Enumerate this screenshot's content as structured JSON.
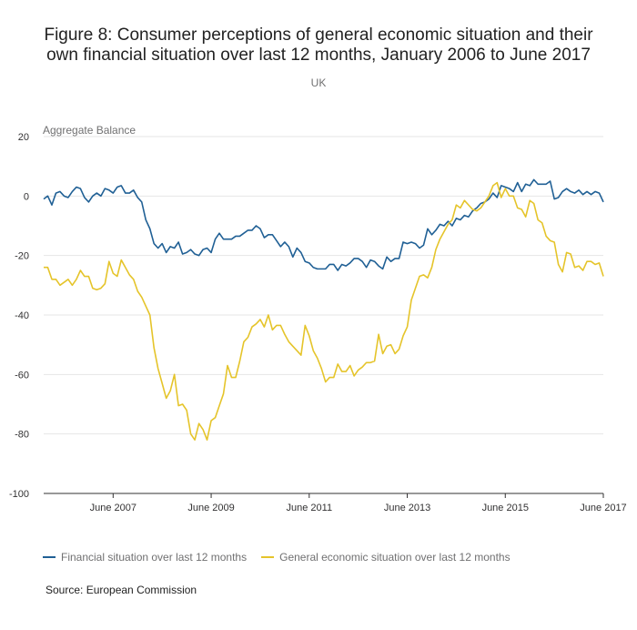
{
  "title_line1": "Figure 8: Consumer perceptions of general economic situation and their",
  "title_line2": "own financial situation over last 12 months, January 2006 to June 2017",
  "subtitle": "UK",
  "source": "Source: European Commission",
  "chart_data": {
    "type": "line",
    "ylabel": "Aggregate Balance",
    "ylim": [
      -100,
      20
    ],
    "yticks": [
      20,
      0,
      -20,
      -40,
      -60,
      -80,
      -100
    ],
    "xlim": [
      2006.0,
      2017.4167
    ],
    "xticks": [
      {
        "label": "June 2007",
        "x": 2007.4167
      },
      {
        "label": "June 2009",
        "x": 2009.4167
      },
      {
        "label": "June 2011",
        "x": 2011.4167
      },
      {
        "label": "June 2013",
        "x": 2013.4167
      },
      {
        "label": "June 2015",
        "x": 2015.4167
      },
      {
        "label": "June 2017",
        "x": 2017.4167
      }
    ],
    "series": [
      {
        "name": "Financial situation over last 12 months",
        "color": "#206095",
        "x": [
          2006.0,
          2006.083,
          2006.167,
          2006.25,
          2006.333,
          2006.417,
          2006.5,
          2006.583,
          2006.667,
          2006.75,
          2006.833,
          2006.917,
          2007.0,
          2007.083,
          2007.167,
          2007.25,
          2007.333,
          2007.417,
          2007.5,
          2007.583,
          2007.667,
          2007.75,
          2007.833,
          2007.917,
          2008.0,
          2008.083,
          2008.167,
          2008.25,
          2008.333,
          2008.417,
          2008.5,
          2008.583,
          2008.667,
          2008.75,
          2008.833,
          2008.917,
          2009.0,
          2009.083,
          2009.167,
          2009.25,
          2009.333,
          2009.417,
          2009.5,
          2009.583,
          2009.667,
          2009.75,
          2009.833,
          2009.917,
          2010.0,
          2010.083,
          2010.167,
          2010.25,
          2010.333,
          2010.417,
          2010.5,
          2010.583,
          2010.667,
          2010.75,
          2010.833,
          2010.917,
          2011.0,
          2011.083,
          2011.167,
          2011.25,
          2011.333,
          2011.417,
          2011.5,
          2011.583,
          2011.667,
          2011.75,
          2011.833,
          2011.917,
          2012.0,
          2012.083,
          2012.167,
          2012.25,
          2012.333,
          2012.417,
          2012.5,
          2012.583,
          2012.667,
          2012.75,
          2012.833,
          2012.917,
          2013.0,
          2013.083,
          2013.167,
          2013.25,
          2013.333,
          2013.417,
          2013.5,
          2013.583,
          2013.667,
          2013.75,
          2013.833,
          2013.917,
          2014.0,
          2014.083,
          2014.167,
          2014.25,
          2014.333,
          2014.417,
          2014.5,
          2014.583,
          2014.667,
          2014.75,
          2014.833,
          2014.917,
          2015.0,
          2015.083,
          2015.167,
          2015.25,
          2015.333,
          2015.417,
          2015.5,
          2015.583,
          2015.667,
          2015.75,
          2015.833,
          2015.917,
          2016.0,
          2016.083,
          2016.167,
          2016.25,
          2016.333,
          2016.417,
          2016.5,
          2016.583,
          2016.667,
          2016.75,
          2016.833,
          2016.917,
          2017.0,
          2017.083,
          2017.167,
          2017.25,
          2017.333,
          2017.417
        ],
        "values": [
          -1,
          0,
          -3,
          1,
          1.5,
          0,
          -0.5,
          1.5,
          3,
          2.5,
          -0.5,
          -2,
          0,
          1,
          0,
          2.5,
          2,
          1,
          3,
          3.5,
          1,
          1,
          2,
          -0.5,
          -2,
          -8,
          -11,
          -16,
          -17.5,
          -16,
          -19,
          -17,
          -17.5,
          -15.5,
          -19.5,
          -19,
          -18,
          -19.5,
          -20,
          -18,
          -17.5,
          -19,
          -14.5,
          -12.5,
          -14.5,
          -14.5,
          -14.5,
          -13.5,
          -13.5,
          -12.5,
          -11.5,
          -11.5,
          -10,
          -11,
          -14,
          -13,
          -13,
          -15,
          -17,
          -15.5,
          -17,
          -20.5,
          -17.5,
          -19,
          -22,
          -22.5,
          -24,
          -24.5,
          -24.5,
          -24.5,
          -23,
          -23,
          -25,
          -23,
          -23.5,
          -22.5,
          -21,
          -21,
          -22,
          -24,
          -21.5,
          -22,
          -23.5,
          -24.5,
          -20.5,
          -22,
          -21,
          -21,
          -15.5,
          -16,
          -15.5,
          -16,
          -17.5,
          -16.5,
          -11,
          -13,
          -11.5,
          -9.5,
          -10,
          -8.5,
          -10,
          -7.5,
          -8,
          -6.5,
          -7,
          -5,
          -4,
          -2.5,
          -2,
          -1,
          1,
          -0.5,
          3.5,
          3,
          2.5,
          1.5,
          4.5,
          1.5,
          4,
          3.5,
          5.5,
          4,
          4,
          4,
          5,
          -1,
          -0.5,
          1.5,
          2.5,
          1.5,
          1,
          2,
          0.5,
          1.5,
          0.5,
          1.5,
          1,
          -2
        ]
      },
      {
        "name": "General economic situation over last 12 months",
        "color": "#e5c42a",
        "x": [
          2006.0,
          2006.083,
          2006.167,
          2006.25,
          2006.333,
          2006.417,
          2006.5,
          2006.583,
          2006.667,
          2006.75,
          2006.833,
          2006.917,
          2007.0,
          2007.083,
          2007.167,
          2007.25,
          2007.333,
          2007.417,
          2007.5,
          2007.583,
          2007.667,
          2007.75,
          2007.833,
          2007.917,
          2008.0,
          2008.083,
          2008.167,
          2008.25,
          2008.333,
          2008.417,
          2008.5,
          2008.583,
          2008.667,
          2008.75,
          2008.833,
          2008.917,
          2009.0,
          2009.083,
          2009.167,
          2009.25,
          2009.333,
          2009.417,
          2009.5,
          2009.583,
          2009.667,
          2009.75,
          2009.833,
          2009.917,
          2010.0,
          2010.083,
          2010.167,
          2010.25,
          2010.333,
          2010.417,
          2010.5,
          2010.583,
          2010.667,
          2010.75,
          2010.833,
          2010.917,
          2011.0,
          2011.083,
          2011.167,
          2011.25,
          2011.333,
          2011.417,
          2011.5,
          2011.583,
          2011.667,
          2011.75,
          2011.833,
          2011.917,
          2012.0,
          2012.083,
          2012.167,
          2012.25,
          2012.333,
          2012.417,
          2012.5,
          2012.583,
          2012.667,
          2012.75,
          2012.833,
          2012.917,
          2013.0,
          2013.083,
          2013.167,
          2013.25,
          2013.333,
          2013.417,
          2013.5,
          2013.583,
          2013.667,
          2013.75,
          2013.833,
          2013.917,
          2014.0,
          2014.083,
          2014.167,
          2014.25,
          2014.333,
          2014.417,
          2014.5,
          2014.583,
          2014.667,
          2014.75,
          2014.833,
          2014.917,
          2015.0,
          2015.083,
          2015.167,
          2015.25,
          2015.333,
          2015.417,
          2015.5,
          2015.583,
          2015.667,
          2015.75,
          2015.833,
          2015.917,
          2016.0,
          2016.083,
          2016.167,
          2016.25,
          2016.333,
          2016.417,
          2016.5,
          2016.583,
          2016.667,
          2016.75,
          2016.833,
          2016.917,
          2017.0,
          2017.083,
          2017.167,
          2017.25,
          2017.333,
          2017.417
        ],
        "values": [
          -24,
          -24,
          -28,
          -28,
          -30,
          -29,
          -28,
          -30,
          -28,
          -25,
          -27,
          -27,
          -31,
          -31.5,
          -31,
          -29.5,
          -22,
          -26,
          -27,
          -21.5,
          -24,
          -26.5,
          -28,
          -32,
          -34,
          -37,
          -40,
          -51,
          -58,
          -63,
          -68,
          -65.5,
          -60,
          -70.5,
          -70,
          -72,
          -80,
          -82,
          -76.5,
          -78.5,
          -82,
          -75.5,
          -74.5,
          -70.5,
          -66.5,
          -57,
          -61,
          -61,
          -55.5,
          -49,
          -47.5,
          -44,
          -43,
          -41.5,
          -44,
          -40,
          -45,
          -43.5,
          -43.5,
          -46.5,
          -49,
          -50.5,
          -52,
          -53.5,
          -43.5,
          -47,
          -52,
          -54.5,
          -58,
          -62.5,
          -61,
          -61,
          -56.5,
          -59,
          -59,
          -57,
          -60.5,
          -58.5,
          -57.5,
          -56,
          -56,
          -55.5,
          -46.5,
          -53,
          -50.5,
          -50,
          -53,
          -51.5,
          -47,
          -44,
          -35,
          -31,
          -27,
          -26.5,
          -27.5,
          -24,
          -18,
          -14.5,
          -12,
          -9.5,
          -8,
          -3,
          -4,
          -1.5,
          -3,
          -4.5,
          -5,
          -4,
          -2,
          0,
          3.5,
          4.5,
          -0.5,
          2.5,
          0,
          0,
          -4,
          -4.5,
          -7,
          -1.5,
          -2.5,
          -8,
          -9,
          -13.5,
          -15,
          -15.5,
          -23,
          -25.5,
          -19,
          -19.5,
          -24,
          -23.5,
          -25,
          -22,
          -22,
          -23,
          -22.5,
          -27
        ]
      }
    ]
  }
}
